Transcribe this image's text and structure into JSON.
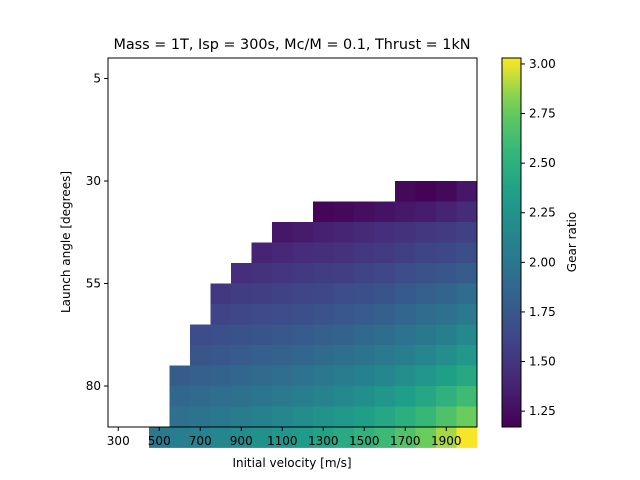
{
  "chart_data": {
    "type": "heatmap",
    "title": "Mass = 1T, Isp = 300s, Mc/M = 0.1, Thrust = 1kN",
    "xlabel": "Initial velocity [m/s]",
    "ylabel": "Launch angle [degrees]",
    "colorbar_label": "Gear ratio",
    "colormap": "viridis",
    "vmin": 1.17,
    "vmax": 3.03,
    "x_cell_start": 250,
    "x_cell_step": 100,
    "y_cell_start": 5,
    "y_cell_step": 5,
    "xlim": [
      250,
      2050
    ],
    "ylim": [
      0,
      90
    ],
    "xticks": [
      300,
      500,
      700,
      900,
      1100,
      1300,
      1500,
      1700,
      1900
    ],
    "yticks": [
      5,
      30,
      55,
      80
    ],
    "colorbar_ticks": [
      1.25,
      1.5,
      1.75,
      2.0,
      2.25,
      2.5,
      2.75,
      3.0
    ],
    "colorbar_tick_labels": [
      "1.25",
      "1.50",
      "1.75",
      "2.00",
      "2.25",
      "2.50",
      "2.75",
      "3.00"
    ],
    "x_categories": [
      300,
      400,
      500,
      600,
      700,
      800,
      900,
      1000,
      1100,
      1200,
      1300,
      1400,
      1500,
      1600,
      1700,
      1800,
      1900,
      2000
    ],
    "y_categories": [
      5,
      10,
      15,
      20,
      25,
      30,
      35,
      40,
      45,
      50,
      55,
      60,
      65,
      70,
      75,
      80,
      85,
      90
    ],
    "values": [
      [
        null,
        null,
        null,
        null,
        null,
        null,
        null,
        null,
        null,
        null,
        null,
        null,
        null,
        null,
        null,
        null,
        null,
        null
      ],
      [
        null,
        null,
        null,
        null,
        null,
        null,
        null,
        null,
        null,
        null,
        null,
        null,
        null,
        null,
        null,
        null,
        null,
        null
      ],
      [
        null,
        null,
        null,
        null,
        null,
        null,
        null,
        null,
        null,
        null,
        null,
        null,
        null,
        null,
        null,
        null,
        null,
        null
      ],
      [
        null,
        null,
        null,
        null,
        null,
        null,
        null,
        null,
        null,
        null,
        null,
        null,
        null,
        null,
        null,
        null,
        null,
        null
      ],
      [
        null,
        null,
        null,
        null,
        null,
        null,
        null,
        null,
        null,
        null,
        null,
        null,
        null,
        null,
        null,
        null,
        null,
        null
      ],
      [
        null,
        null,
        null,
        null,
        null,
        null,
        null,
        null,
        null,
        null,
        null,
        null,
        null,
        null,
        1.22,
        1.18,
        1.22,
        1.3
      ],
      [
        null,
        null,
        null,
        null,
        null,
        null,
        null,
        null,
        null,
        null,
        1.2,
        1.22,
        1.25,
        1.28,
        1.31,
        1.34,
        1.38,
        1.43
      ],
      [
        null,
        null,
        null,
        null,
        null,
        null,
        null,
        null,
        1.3,
        1.33,
        1.36,
        1.39,
        1.42,
        1.45,
        1.48,
        1.51,
        1.54,
        1.58
      ],
      [
        null,
        null,
        null,
        null,
        null,
        null,
        null,
        1.38,
        1.41,
        1.44,
        1.46,
        1.48,
        1.51,
        1.54,
        1.57,
        1.6,
        1.63,
        1.67
      ],
      [
        null,
        null,
        null,
        null,
        null,
        null,
        1.45,
        1.48,
        1.5,
        1.53,
        1.55,
        1.57,
        1.6,
        1.63,
        1.66,
        1.7,
        1.73,
        1.78
      ],
      [
        null,
        null,
        null,
        null,
        null,
        1.52,
        1.55,
        1.57,
        1.59,
        1.61,
        1.63,
        1.66,
        1.69,
        1.72,
        1.76,
        1.8,
        1.84,
        1.9
      ],
      [
        null,
        null,
        null,
        null,
        null,
        1.6,
        1.62,
        1.64,
        1.66,
        1.68,
        1.71,
        1.74,
        1.77,
        1.81,
        1.85,
        1.9,
        1.95,
        2.02
      ],
      [
        null,
        null,
        null,
        null,
        1.66,
        1.68,
        1.7,
        1.72,
        1.74,
        1.77,
        1.8,
        1.83,
        1.87,
        1.91,
        1.96,
        2.01,
        2.07,
        2.15
      ],
      [
        null,
        null,
        null,
        null,
        1.73,
        1.75,
        1.77,
        1.8,
        1.83,
        1.86,
        1.89,
        1.93,
        1.97,
        2.02,
        2.07,
        2.13,
        2.2,
        2.28
      ],
      [
        null,
        null,
        null,
        1.78,
        1.8,
        1.83,
        1.86,
        1.89,
        1.92,
        1.96,
        2.0,
        2.04,
        2.09,
        2.14,
        2.2,
        2.27,
        2.34,
        2.43
      ],
      [
        null,
        null,
        null,
        1.86,
        1.89,
        1.92,
        1.95,
        1.99,
        2.02,
        2.06,
        2.11,
        2.16,
        2.21,
        2.27,
        2.33,
        2.41,
        2.5,
        2.6
      ],
      [
        null,
        null,
        null,
        1.94,
        1.97,
        2.01,
        2.05,
        2.09,
        2.13,
        2.18,
        2.23,
        2.28,
        2.34,
        2.41,
        2.48,
        2.57,
        2.67,
        2.78
      ],
      [
        null,
        null,
        2.02,
        2.06,
        2.1,
        2.14,
        2.18,
        2.22,
        2.27,
        2.32,
        2.38,
        2.44,
        2.51,
        2.59,
        2.68,
        2.78,
        2.89,
        3.02
      ]
    ]
  }
}
